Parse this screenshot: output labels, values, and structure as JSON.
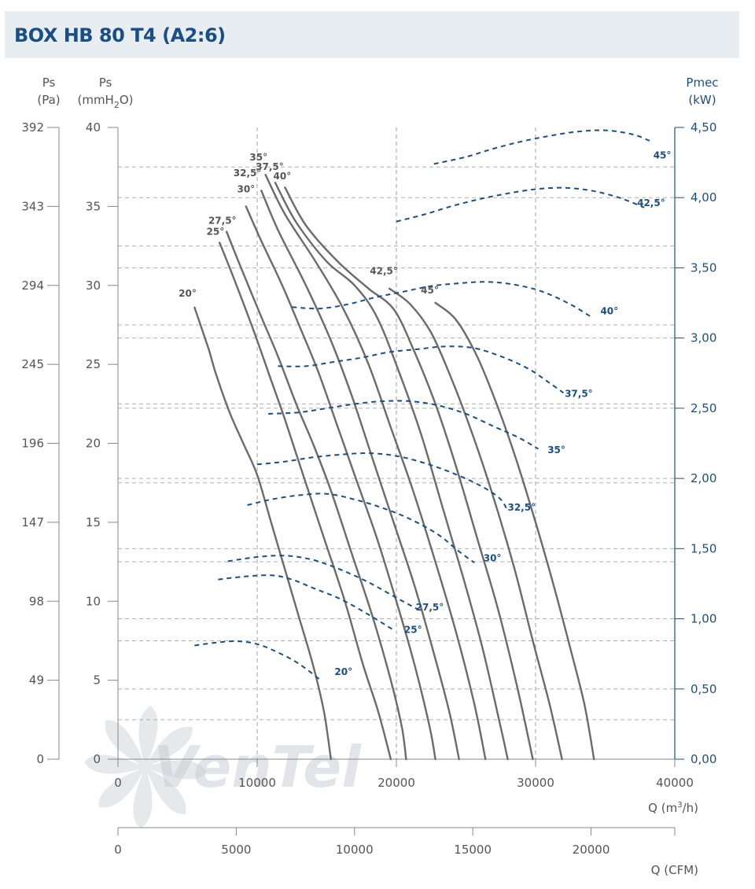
{
  "title": "BOX HB 80 T4 (A2:6)",
  "watermark": "VenTel",
  "colors": {
    "pressure_curve": "#6b6b6b",
    "power_curve": "#1a4f86",
    "grid": "#b0b0b0",
    "title": "#1a4f86",
    "header_bg": "#e8edf2"
  },
  "chart_data": {
    "type": "line",
    "title": "BOX HB 80 T4 (A2:6)",
    "axes": {
      "y_pa": {
        "label_top": "Ps",
        "label_unit": "(Pa)",
        "ticks": [
          "392",
          "343",
          "294",
          "245",
          "196",
          "147",
          "98",
          "49",
          "0"
        ]
      },
      "y_mmh2o": {
        "label_top": "Ps",
        "label_unit_pre": "(mmH",
        "label_unit_sub": "2",
        "label_unit_post": "O)",
        "range": [
          0,
          40
        ],
        "ticks": [
          "40",
          "35",
          "30",
          "25",
          "20",
          "15",
          "10",
          "5",
          "0"
        ]
      },
      "y_power": {
        "label_top": "Pmec",
        "label_unit": "(kW)",
        "range": [
          0,
          4.5
        ],
        "ticks": [
          "4,50",
          "4,00",
          "3,50",
          "3,00",
          "2,50",
          "2,00",
          "1,50",
          "1,00",
          "0,50",
          "0,00"
        ]
      },
      "x_m3h": {
        "label": "Q (m³/h)",
        "label_pre": "Q (m",
        "label_sup": "3",
        "label_post": "/h)",
        "range": [
          0,
          40000
        ],
        "ticks": [
          "0",
          "10000",
          "20000",
          "30000",
          "40000"
        ]
      },
      "x_cfm": {
        "label": "Q (CFM)",
        "range": [
          0,
          23540
        ],
        "ticks": [
          "0",
          "5000",
          "10000",
          "15000",
          "20000"
        ]
      }
    },
    "pressure_series": [
      {
        "name": "20°",
        "label_at": [
          5000,
          29.3
        ],
        "points": [
          [
            5500,
            28.6
          ],
          [
            6500,
            26.0
          ],
          [
            7000,
            24.5
          ],
          [
            8000,
            22.0
          ],
          [
            9000,
            20.0
          ],
          [
            10000,
            18.0
          ],
          [
            11000,
            15.0
          ],
          [
            12000,
            12.0
          ],
          [
            13000,
            9.0
          ],
          [
            14000,
            6.0
          ],
          [
            14800,
            3.0
          ],
          [
            15300,
            0
          ]
        ]
      },
      {
        "name": "25°",
        "label_at": [
          7000,
          33.2
        ],
        "points": [
          [
            7300,
            32.7
          ],
          [
            8300,
            30.5
          ],
          [
            9800,
            27.0
          ],
          [
            11000,
            24.0
          ],
          [
            12000,
            21.5
          ],
          [
            13300,
            18.0
          ],
          [
            14800,
            14.0
          ],
          [
            16300,
            10.0
          ],
          [
            17600,
            6.0
          ],
          [
            18700,
            3.0
          ],
          [
            19600,
            0
          ]
        ]
      },
      {
        "name": "27,5°",
        "label_at": [
          7500,
          33.9
        ],
        "points": [
          [
            7800,
            33.4
          ],
          [
            8800,
            31.2
          ],
          [
            10300,
            28.0
          ],
          [
            11500,
            25.5
          ],
          [
            12800,
            22.5
          ],
          [
            14000,
            20.0
          ],
          [
            15300,
            17.0
          ],
          [
            16800,
            13.0
          ],
          [
            18300,
            9.0
          ],
          [
            19600,
            5.0
          ],
          [
            20400,
            2.0
          ],
          [
            20700,
            0
          ]
        ]
      },
      {
        "name": "30°",
        "label_at": [
          9200,
          35.9
        ],
        "points": [
          [
            9200,
            35.0
          ],
          [
            10200,
            33.0
          ],
          [
            11800,
            30.0
          ],
          [
            13000,
            27.5
          ],
          [
            14400,
            24.5
          ],
          [
            15800,
            21.0
          ],
          [
            17200,
            17.5
          ],
          [
            18600,
            14.0
          ],
          [
            20000,
            10.0
          ],
          [
            21300,
            6.0
          ],
          [
            22400,
            2.0
          ],
          [
            22800,
            0
          ]
        ]
      },
      {
        "name": "32,5°",
        "label_at": [
          9300,
          36.9
        ],
        "points": [
          [
            10300,
            36.0
          ],
          [
            11500,
            33.5
          ],
          [
            13500,
            30.0
          ],
          [
            15300,
            26.5
          ],
          [
            16800,
            23.0
          ],
          [
            18300,
            19.0
          ],
          [
            19800,
            15.0
          ],
          [
            21300,
            11.0
          ],
          [
            22600,
            7.0
          ],
          [
            23800,
            3.0
          ],
          [
            24500,
            0
          ]
        ]
      },
      {
        "name": "35°",
        "label_at": [
          10100,
          37.9
        ],
        "points": [
          [
            10600,
            37.0
          ],
          [
            12000,
            34.5
          ],
          [
            14200,
            31.5
          ],
          [
            16200,
            28.5
          ],
          [
            18000,
            25.0
          ],
          [
            19600,
            21.0
          ],
          [
            21200,
            17.0
          ],
          [
            22800,
            12.5
          ],
          [
            24300,
            8.0
          ],
          [
            25600,
            3.5
          ],
          [
            26400,
            0
          ]
        ]
      },
      {
        "name": "37,5°",
        "label_at": [
          10900,
          37.3
        ],
        "points": [
          [
            11300,
            36.5
          ],
          [
            12800,
            34.0
          ],
          [
            15000,
            31.5
          ],
          [
            17000,
            30.0
          ],
          [
            18600,
            28.0
          ],
          [
            20200,
            24.5
          ],
          [
            21800,
            20.5
          ],
          [
            23300,
            16.0
          ],
          [
            24800,
            11.5
          ],
          [
            26200,
            7.0
          ],
          [
            27500,
            2.0
          ],
          [
            28000,
            0
          ]
        ]
      },
      {
        "name": "40°",
        "label_at": [
          11800,
          36.7
        ],
        "points": [
          [
            12000,
            36.2
          ],
          [
            13500,
            33.8
          ],
          [
            15800,
            31.5
          ],
          [
            18000,
            29.8
          ],
          [
            19800,
            28.5
          ],
          [
            21200,
            26.0
          ],
          [
            22800,
            22.5
          ],
          [
            24300,
            18.5
          ],
          [
            25800,
            14.0
          ],
          [
            27300,
            9.5
          ],
          [
            28700,
            4.5
          ],
          [
            29800,
            0
          ]
        ]
      },
      {
        "name": "42,5°",
        "label_at": [
          19100,
          30.7
        ],
        "points": [
          [
            19500,
            29.8
          ],
          [
            21000,
            28.8
          ],
          [
            22500,
            27.0
          ],
          [
            24000,
            24.0
          ],
          [
            25500,
            20.5
          ],
          [
            27000,
            16.5
          ],
          [
            28500,
            12.0
          ],
          [
            29800,
            7.5
          ],
          [
            31000,
            3.5
          ],
          [
            31900,
            0
          ]
        ]
      },
      {
        "name": "45°",
        "label_at": [
          22400,
          29.5
        ],
        "points": [
          [
            22800,
            28.9
          ],
          [
            24300,
            27.8
          ],
          [
            25800,
            25.5
          ],
          [
            27200,
            22.5
          ],
          [
            28600,
            19.0
          ],
          [
            30000,
            15.0
          ],
          [
            31300,
            11.0
          ],
          [
            32500,
            7.0
          ],
          [
            33500,
            3.5
          ],
          [
            34200,
            0
          ]
        ]
      }
    ],
    "power_series": [
      {
        "name": "20°",
        "label_at": [
          16200,
          0.6
        ],
        "points": [
          [
            5500,
            0.81
          ],
          [
            7000,
            0.83
          ],
          [
            8500,
            0.84
          ],
          [
            10000,
            0.82
          ],
          [
            11500,
            0.76
          ],
          [
            13000,
            0.68
          ],
          [
            14600,
            0.56
          ]
        ]
      },
      {
        "name": "25°",
        "label_at": [
          21200,
          0.9
        ],
        "points": [
          [
            7200,
            1.28
          ],
          [
            9000,
            1.3
          ],
          [
            11000,
            1.31
          ],
          [
            12500,
            1.28
          ],
          [
            14000,
            1.22
          ],
          [
            16000,
            1.14
          ],
          [
            18000,
            1.03
          ],
          [
            19800,
            0.92
          ]
        ]
      },
      {
        "name": "27,5°",
        "label_at": [
          22400,
          1.06
        ],
        "points": [
          [
            7900,
            1.41
          ],
          [
            10000,
            1.44
          ],
          [
            12000,
            1.45
          ],
          [
            14000,
            1.42
          ],
          [
            16000,
            1.35
          ],
          [
            18000,
            1.26
          ],
          [
            20000,
            1.15
          ],
          [
            21500,
            1.07
          ]
        ]
      },
      {
        "name": "30°",
        "label_at": [
          26900,
          1.41
        ],
        "points": [
          [
            9300,
            1.81
          ],
          [
            11000,
            1.85
          ],
          [
            13000,
            1.88
          ],
          [
            15000,
            1.89
          ],
          [
            17000,
            1.85
          ],
          [
            19000,
            1.79
          ],
          [
            21000,
            1.71
          ],
          [
            23000,
            1.6
          ],
          [
            24500,
            1.48
          ],
          [
            25600,
            1.4
          ]
        ]
      },
      {
        "name": "32,5°",
        "label_at": [
          29000,
          1.77
        ],
        "points": [
          [
            10000,
            2.1
          ],
          [
            12000,
            2.12
          ],
          [
            14000,
            2.15
          ],
          [
            16000,
            2.17
          ],
          [
            18000,
            2.18
          ],
          [
            20000,
            2.16
          ],
          [
            22000,
            2.11
          ],
          [
            24000,
            2.04
          ],
          [
            26000,
            1.95
          ],
          [
            27400,
            1.86
          ],
          [
            28000,
            1.77
          ]
        ]
      },
      {
        "name": "35°",
        "label_at": [
          31500,
          2.18
        ],
        "points": [
          [
            10800,
            2.46
          ],
          [
            13000,
            2.47
          ],
          [
            15000,
            2.5
          ],
          [
            17000,
            2.53
          ],
          [
            19000,
            2.55
          ],
          [
            21000,
            2.55
          ],
          [
            23000,
            2.52
          ],
          [
            25000,
            2.46
          ],
          [
            27000,
            2.37
          ],
          [
            28800,
            2.29
          ],
          [
            30200,
            2.21
          ]
        ]
      },
      {
        "name": "37,5°",
        "label_at": [
          33100,
          2.58
        ],
        "points": [
          [
            11500,
            2.8
          ],
          [
            13500,
            2.8
          ],
          [
            15500,
            2.83
          ],
          [
            17500,
            2.86
          ],
          [
            19500,
            2.9
          ],
          [
            21500,
            2.92
          ],
          [
            23500,
            2.94
          ],
          [
            25500,
            2.93
          ],
          [
            27500,
            2.87
          ],
          [
            29500,
            2.78
          ],
          [
            31000,
            2.68
          ],
          [
            32000,
            2.61
          ]
        ]
      },
      {
        "name": "40°",
        "label_at": [
          35300,
          3.17
        ],
        "points": [
          [
            12500,
            3.22
          ],
          [
            14500,
            3.21
          ],
          [
            16500,
            3.24
          ],
          [
            18500,
            3.29
          ],
          [
            20500,
            3.33
          ],
          [
            22500,
            3.37
          ],
          [
            24500,
            3.39
          ],
          [
            26500,
            3.4
          ],
          [
            28500,
            3.38
          ],
          [
            30500,
            3.33
          ],
          [
            32500,
            3.24
          ],
          [
            34000,
            3.15
          ]
        ]
      },
      {
        "name": "42,5°",
        "label_at": [
          38300,
          3.94
        ],
        "points": [
          [
            20000,
            3.83
          ],
          [
            22000,
            3.88
          ],
          [
            24000,
            3.94
          ],
          [
            26000,
            3.99
          ],
          [
            28000,
            4.03
          ],
          [
            30000,
            4.06
          ],
          [
            32000,
            4.07
          ],
          [
            34000,
            4.05
          ],
          [
            36000,
            4.0
          ],
          [
            37800,
            3.93
          ]
        ]
      },
      {
        "name": "45°",
        "label_at": [
          39100,
          4.28
        ],
        "points": [
          [
            22700,
            4.24
          ],
          [
            25000,
            4.29
          ],
          [
            27000,
            4.35
          ],
          [
            29000,
            4.4
          ],
          [
            31000,
            4.44
          ],
          [
            33000,
            4.47
          ],
          [
            35000,
            4.48
          ],
          [
            37000,
            4.45
          ],
          [
            38300,
            4.4
          ]
        ]
      }
    ],
    "grid": {
      "x_major": [
        10000,
        20000,
        30000
      ],
      "y_minor_mm": [
        2.5,
        7.5,
        12.5,
        17.5,
        22.5,
        27.5,
        32.5,
        37.5
      ],
      "y_minor_power": [
        0.5,
        1.0,
        1.5,
        2.0,
        2.5,
        3.0,
        3.5,
        4.0
      ]
    }
  }
}
